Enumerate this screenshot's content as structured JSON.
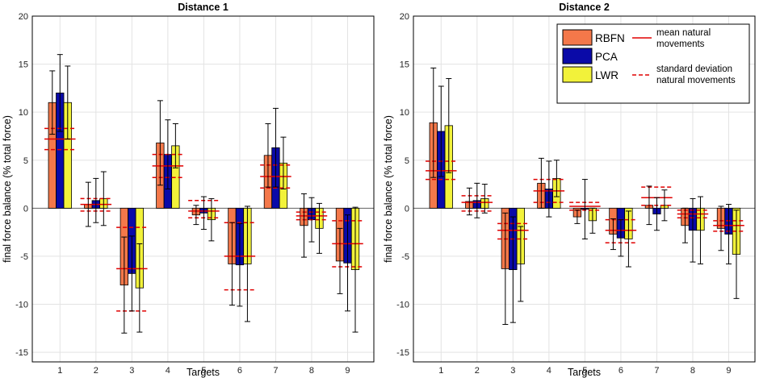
{
  "chart_data": {
    "type": "bar",
    "colors": {
      "RBFN": "#f4784a",
      "PCA": "#0a0aa8",
      "LWR": "#f2f23a",
      "natural": "#e00000"
    },
    "legend": {
      "series": [
        "RBFN",
        "PCA",
        "LWR"
      ],
      "mean_label_1": "mean natural",
      "mean_label_2": "movements",
      "sd_label_1": "standard deviation",
      "sd_label_2": "natural movements"
    },
    "panels": [
      {
        "title": "Distance 1",
        "xlabel": "Targets",
        "ylabel": "final force balance (% total force)",
        "ylim": [
          -16,
          20
        ],
        "yticks": [
          -15,
          -10,
          -5,
          0,
          5,
          10,
          15,
          20
        ],
        "categories": [
          "1",
          "2",
          "3",
          "4",
          "5",
          "6",
          "7",
          "8",
          "9"
        ],
        "series": [
          {
            "name": "RBFN",
            "values": [
              11.0,
              0.4,
              -8.0,
              6.8,
              -0.7,
              -5.8,
              5.5,
              -1.8,
              -5.5
            ],
            "err": [
              3.3,
              2.3,
              5.0,
              4.4,
              1.0,
              4.3,
              3.3,
              3.3,
              3.4
            ]
          },
          {
            "name": "PCA",
            "values": [
              12.0,
              0.8,
              -6.8,
              5.6,
              -0.5,
              -5.9,
              6.3,
              -1.2,
              -5.7
            ],
            "err": [
              4.0,
              2.3,
              3.9,
              3.6,
              1.7,
              4.3,
              4.1,
              2.3,
              5.0
            ]
          },
          {
            "name": "LWR",
            "values": [
              11.0,
              1.0,
              -8.3,
              6.5,
              -1.2,
              -5.8,
              4.7,
              -2.1,
              -6.4
            ],
            "err": [
              3.8,
              2.8,
              4.6,
              2.3,
              2.2,
              6.0,
              2.7,
              2.6,
              6.5
            ]
          }
        ],
        "natural_mean": [
          7.2,
          0.4,
          -6.3,
          4.4,
          -0.3,
          -5.0,
          3.3,
          -0.8,
          -3.7
        ],
        "natural_sd_upper": [
          8.3,
          1.0,
          -2.0,
          5.6,
          0.8,
          -1.5,
          4.5,
          -0.4,
          -1.3
        ],
        "natural_sd_lower": [
          6.1,
          -0.3,
          -10.7,
          3.2,
          -1.0,
          -8.5,
          2.1,
          -1.2,
          -6.1
        ]
      },
      {
        "title": "Distance 2",
        "xlabel": "Targets",
        "ylabel": "final force balance (% total force)",
        "ylim": [
          -16,
          20
        ],
        "yticks": [
          -15,
          -10,
          -5,
          0,
          5,
          10,
          15,
          20
        ],
        "categories": [
          "1",
          "2",
          "3",
          "4",
          "5",
          "6",
          "7",
          "8",
          "9"
        ],
        "series": [
          {
            "name": "RBFN",
            "values": [
              8.9,
              0.7,
              -6.3,
              2.6,
              -0.9,
              -2.7,
              0.3,
              -1.8,
              -2.1
            ],
            "err": [
              5.7,
              1.4,
              5.8,
              2.6,
              0.7,
              1.6,
              2.0,
              1.8,
              2.3
            ]
          },
          {
            "name": "PCA",
            "values": [
              8.0,
              0.8,
              -6.4,
              2.0,
              -0.1,
              -3.1,
              -0.6,
              -2.3,
              -2.7
            ],
            "err": [
              4.7,
              1.8,
              5.5,
              2.9,
              3.1,
              1.9,
              1.7,
              3.3,
              3.1
            ]
          },
          {
            "name": "LWR",
            "values": [
              8.6,
              1.0,
              -5.8,
              3.1,
              -1.3,
              -3.2,
              0.3,
              -2.3,
              -4.8
            ],
            "err": [
              4.9,
              1.5,
              3.9,
              1.9,
              1.3,
              2.9,
              1.6,
              3.5,
              4.6
            ]
          }
        ],
        "natural_mean": [
          3.9,
          0.6,
          -2.3,
          1.8,
          0.2,
          -2.3,
          1.1,
          -0.6,
          -1.8
        ],
        "natural_sd_upper": [
          4.9,
          1.3,
          -1.6,
          3.0,
          0.6,
          -1.2,
          2.2,
          -0.2,
          -1.3
        ],
        "natural_sd_lower": [
          3.0,
          -0.3,
          -3.2,
          0.6,
          -0.2,
          -3.6,
          0.3,
          -1.0,
          -2.4
        ]
      }
    ]
  }
}
